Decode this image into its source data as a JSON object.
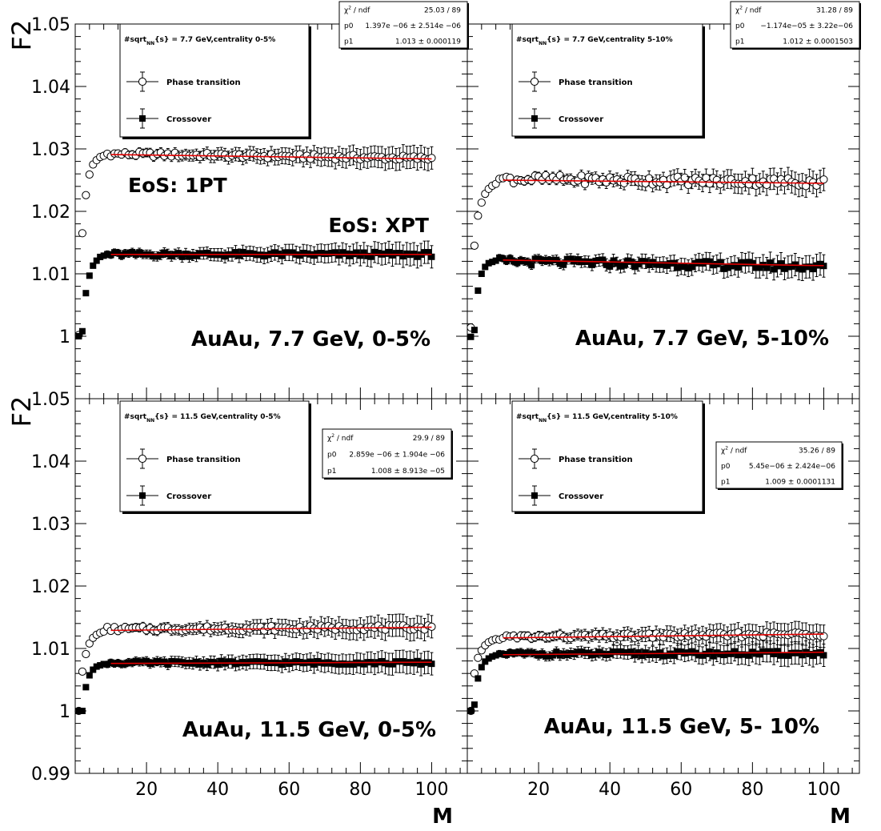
{
  "y_axis_label": "F2",
  "x_axis_label": "M",
  "chart_data": [
    {
      "type": "scatter",
      "panel": "top-left",
      "legend_title": "#sqrt_{NN}{s} = 7.7 GeV,centrality 0-5%",
      "legend": [
        "Phase transition",
        "Crossover"
      ],
      "annotations": [
        "EoS: 1PT",
        "EoS: XPT",
        "AuAu, 7.7 GeV, 0-5%"
      ],
      "fit_box": {
        "chi2": "25.03 / 89",
        "p0": "1.397e −06 ± 2.514e −06",
        "p1": "1.013  ± 0.000119"
      },
      "xlim": [
        0,
        110
      ],
      "ylim": [
        0.99,
        1.05
      ],
      "x_ticks": [],
      "y_ticks": [
        "1",
        "1.01",
        "1.02",
        "1.03",
        "1.04",
        "1.05"
      ],
      "series": [
        {
          "name": "Phase transition",
          "marker": "open-circle",
          "plateau": 1.0292,
          "slope": -8e-06,
          "noise": 0.0004,
          "points": [
            1.0002,
            1.0165,
            1.0226,
            1.0259,
            1.0275,
            1.0282,
            1.0287,
            1.0289
          ]
        },
        {
          "name": "Crossover",
          "marker": "filled-square",
          "plateau": 1.0131,
          "slope": 0.0,
          "noise": 0.0004,
          "points": [
            1.0,
            1.0008,
            1.0069,
            1.0097,
            1.0113,
            1.0121,
            1.0127,
            1.0129
          ]
        }
      ],
      "fit_lines": [
        {
          "series": "Phase transition",
          "x": [
            10,
            100
          ],
          "y": [
            1.0291,
            1.0284
          ]
        },
        {
          "series": "Crossover",
          "x": [
            10,
            100
          ],
          "y": [
            1.0131,
            1.0131
          ]
        }
      ]
    },
    {
      "type": "scatter",
      "panel": "top-right",
      "legend_title": "#sqrt_{NN}{s} = 7.7 GeV,centrality 5-10%",
      "legend": [
        "Phase transition",
        "Crossover"
      ],
      "annotations": [
        "AuAu, 7.7 GeV, 5-10%"
      ],
      "fit_box": {
        "chi2": "31.28 / 89",
        "p0": "−1.174e−05 ± 3.22e−06",
        "p1": "1.012 ± 0.0001503"
      },
      "xlim": [
        0,
        110
      ],
      "ylim": [
        0.99,
        1.05
      ],
      "x_ticks": [],
      "y_ticks": [],
      "series": [
        {
          "name": "Phase transition",
          "marker": "open-circle",
          "plateau": 1.0252,
          "slope": -6e-06,
          "noise": 0.0007,
          "points": [
            1.0014,
            1.0145,
            1.0193,
            1.0214,
            1.0228,
            1.0236,
            1.0241,
            1.0244
          ]
        },
        {
          "name": "Crossover",
          "marker": "filled-square",
          "plateau": 1.012,
          "slope": -1e-05,
          "noise": 0.0006,
          "points": [
            0.9999,
            1.001,
            1.0073,
            1.01,
            1.0111,
            1.0117,
            1.0119,
            1.0121
          ]
        }
      ],
      "fit_lines": [
        {
          "series": "Phase transition",
          "x": [
            10,
            100
          ],
          "y": [
            1.025,
            1.0245
          ]
        },
        {
          "series": "Crossover",
          "x": [
            10,
            100
          ],
          "y": [
            1.0122,
            1.0113
          ]
        }
      ]
    },
    {
      "type": "scatter",
      "panel": "bottom-left",
      "legend_title": "#sqrt_{NN}{s} = 11.5 GeV,centrality 0-5%",
      "legend": [
        "Phase transition",
        "Crossover"
      ],
      "annotations": [
        "AuAu, 11.5 GeV, 0-5%"
      ],
      "fit_box": {
        "chi2": "29.9 / 89",
        "p0": "2.859e −06 ± 1.904e −06",
        "p1": "1.008  ± 8.913e −05"
      },
      "xlim": [
        0,
        110
      ],
      "ylim": [
        0.99,
        1.05
      ],
      "x_ticks": [
        "20",
        "40",
        "60",
        "80",
        "100"
      ],
      "y_ticks": [
        "0.99",
        "1",
        "1.01",
        "1.02",
        "1.03",
        "1.04",
        "1.05"
      ],
      "series": [
        {
          "name": "Phase transition",
          "marker": "open-circle",
          "plateau": 1.0131,
          "slope": 3e-06,
          "noise": 0.0004,
          "points": [
            1.0,
            1.0063,
            1.0091,
            1.0108,
            1.0117,
            1.0122,
            1.0125,
            1.0127
          ]
        },
        {
          "name": "Crossover",
          "marker": "filled-square",
          "plateau": 1.0077,
          "slope": 0.0,
          "noise": 0.0003,
          "points": [
            1.0,
            1.0,
            1.0038,
            1.0057,
            1.0066,
            1.0071,
            1.0073,
            1.0075
          ]
        }
      ],
      "fit_lines": [
        {
          "series": "Phase transition",
          "x": [
            10,
            100
          ],
          "y": [
            1.0129,
            1.0134
          ]
        },
        {
          "series": "Crossover",
          "x": [
            10,
            100
          ],
          "y": [
            1.0076,
            1.0078
          ]
        }
      ]
    },
    {
      "type": "scatter",
      "panel": "bottom-right",
      "legend_title": "#sqrt_{NN}{s} = 11.5 GeV,centrality 5-10%",
      "legend": [
        "Phase transition",
        "Crossover"
      ],
      "annotations": [
        "AuAu, 11.5 GeV, 5- 10%"
      ],
      "fit_box": {
        "chi2": "35.26 / 89",
        "p0": "5.45e−06 ± 2.424e−06",
        "p1": "1.009 ± 0.0001131"
      },
      "xlim": [
        0,
        110
      ],
      "ylim": [
        0.99,
        1.05
      ],
      "x_ticks": [
        "20",
        "40",
        "60",
        "80",
        "100"
      ],
      "y_ticks": [],
      "series": [
        {
          "name": "Phase transition",
          "marker": "open-circle",
          "plateau": 1.0118,
          "slope": 6e-06,
          "noise": 0.0004,
          "points": [
            1.0,
            1.006,
            1.0085,
            1.0097,
            1.0105,
            1.011,
            1.0113,
            1.0115
          ]
        },
        {
          "name": "Crossover",
          "marker": "filled-square",
          "plateau": 1.0091,
          "slope": 1e-06,
          "noise": 0.0004,
          "points": [
            1.0,
            1.001,
            1.0052,
            1.007,
            1.0079,
            1.0084,
            1.0087,
            1.0089
          ]
        }
      ],
      "fit_lines": [
        {
          "series": "Phase transition",
          "x": [
            10,
            100
          ],
          "y": [
            1.0117,
            1.0123
          ]
        },
        {
          "series": "Crossover",
          "x": [
            10,
            100
          ],
          "y": [
            1.009,
            1.0094
          ]
        }
      ]
    }
  ]
}
